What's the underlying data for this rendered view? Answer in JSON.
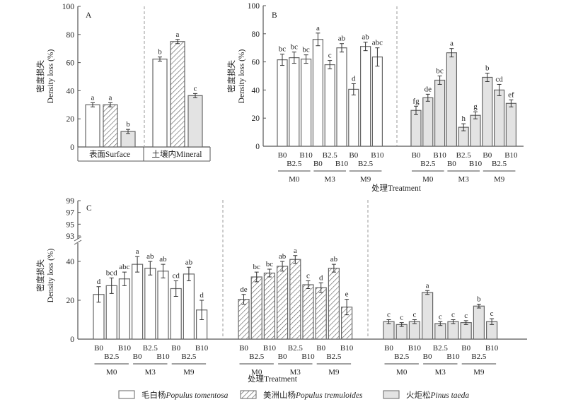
{
  "y_axis_label_cn": "密度损失",
  "y_axis_label_en": "Density loss (%)",
  "x_axis_label": "处理Treatment",
  "treatments": [
    "B0",
    "B2.5",
    "B10"
  ],
  "management": [
    "M0",
    "M3",
    "M9"
  ],
  "legend": [
    {
      "key": "tomentosa",
      "label_cn": "毛白杨",
      "label_latin": "Populus tomentosa",
      "fill": "open"
    },
    {
      "key": "tremuloides",
      "label_cn": "美洲山杨",
      "label_latin": "Populus tremuloides",
      "fill": "hatch"
    },
    {
      "key": "taeda",
      "label_cn": "火炬松",
      "label_latin": "Pinus taeda",
      "fill": "grey"
    }
  ],
  "colors": {
    "axis": "#555555",
    "bar_stroke": "#666666",
    "grey_fill": "#e3e3e3",
    "divider": "#999999"
  },
  "chart_data": [
    {
      "panel": "A",
      "type": "bar",
      "ylabel": "密度损失 Density loss (%)",
      "ylim": [
        0,
        100
      ],
      "yticks": [
        0,
        20,
        40,
        60,
        80,
        100
      ],
      "groups": [
        "表面Surface",
        "土壤内Mineral"
      ],
      "series": [
        {
          "name": "Populus tomentosa",
          "values": [
            30,
            62.5
          ],
          "errors": [
            1.5,
            1.5
          ],
          "letters": [
            "a",
            "b"
          ]
        },
        {
          "name": "Populus tremuloides",
          "values": [
            30,
            75
          ],
          "errors": [
            1.5,
            1.5
          ],
          "letters": [
            "a",
            "a"
          ]
        },
        {
          "name": "Pinus taeda",
          "values": [
            11,
            36.5
          ],
          "errors": [
            1.5,
            1.5
          ],
          "letters": [
            "b",
            "c"
          ]
        }
      ]
    },
    {
      "panel": "B",
      "type": "bar",
      "ylabel": "Density loss (%)",
      "xlabel": "处理Treatment",
      "ylim": [
        0,
        100
      ],
      "yticks": [
        0,
        20,
        40,
        60,
        80,
        100
      ],
      "categories": [
        "M0-B0",
        "M0-B2.5",
        "M0-B10",
        "M3-B0",
        "M3-B2.5",
        "M3-B10",
        "M9-B0",
        "M9-B2.5",
        "M9-B10"
      ],
      "series": [
        {
          "name": "Populus (open)",
          "values": [
            61.5,
            63,
            62,
            76,
            58,
            70,
            40.5,
            71,
            63.5
          ],
          "errors": [
            4,
            4,
            3,
            4.5,
            3,
            3,
            4,
            3,
            6.5
          ],
          "letters": [
            "bc",
            "bc",
            "bc",
            "a",
            "c",
            "ab",
            "d",
            "ab",
            "abc"
          ]
        },
        {
          "name": "Pinus taeda",
          "values": [
            25.5,
            34.5,
            47,
            66.5,
            13.5,
            22,
            49,
            40,
            30.5
          ],
          "errors": [
            3,
            2.5,
            3,
            3,
            2.5,
            2.5,
            3,
            4,
            2.5
          ],
          "letters": [
            "fg",
            "de",
            "bc",
            "a",
            "h",
            "g",
            "b",
            "cd",
            "ef"
          ]
        }
      ]
    },
    {
      "panel": "C",
      "type": "bar",
      "ylabel": "密度损失 Density loss (%)",
      "xlabel": "处理Treatment",
      "ylim": [
        0,
        99
      ],
      "axis_break": [
        45,
        93
      ],
      "yticks": [
        0,
        20,
        40,
        93,
        95,
        97,
        99
      ],
      "categories": [
        "M0-B0",
        "M0-B2.5",
        "M0-B10",
        "M3-B0",
        "M3-B2.5",
        "M3-B10",
        "M9-B0",
        "M9-B2.5",
        "M9-B10"
      ],
      "series": [
        {
          "name": "Populus tomentosa",
          "values": [
            23,
            27.5,
            31,
            38.5,
            36.5,
            35,
            26,
            33.5,
            15
          ],
          "errors": [
            4,
            4,
            3.5,
            4,
            3.5,
            3.5,
            4,
            3.5,
            5
          ],
          "letters": [
            "d",
            "bcd",
            "abc",
            "a",
            "ab",
            "ab",
            "cd",
            "ab",
            "d"
          ]
        },
        {
          "name": "Populus tremuloides",
          "values": [
            20.5,
            32,
            34,
            37.5,
            41,
            28,
            26.5,
            36.5,
            16.5
          ],
          "errors": [
            2.5,
            2.5,
            2,
            2.5,
            2,
            2,
            2.5,
            2,
            4
          ],
          "letters": [
            "de",
            "bc",
            "bc",
            "ab",
            "a",
            "c",
            "d",
            "ab",
            "e"
          ]
        },
        {
          "name": "Pinus taeda",
          "values": [
            9,
            7.5,
            9,
            24,
            8,
            9,
            8.5,
            17,
            9
          ],
          "errors": [
            1,
            1,
            1,
            1,
            1,
            1,
            1,
            1,
            1.5
          ],
          "letters": [
            "c",
            "c",
            "c",
            "a",
            "c",
            "c",
            "c",
            "b",
            "c"
          ]
        }
      ]
    }
  ]
}
